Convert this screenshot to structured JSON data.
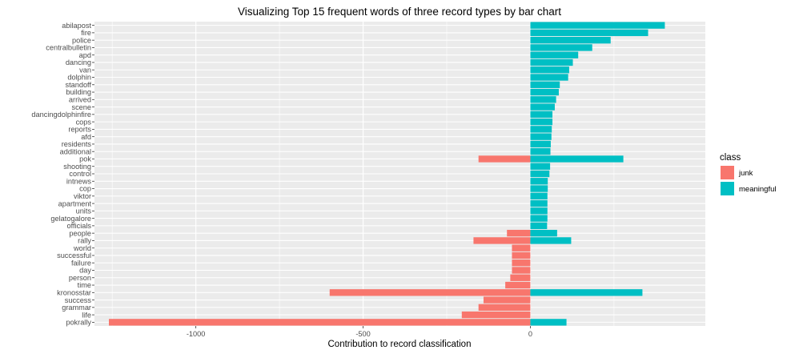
{
  "chart_data": {
    "type": "bar",
    "orientation": "horizontal",
    "title": "Visualizing Top 15 frequent words of three record types by bar chart",
    "xlabel": "Contribution to record classification",
    "ylabel": "",
    "xlim": [
      -1260,
      480
    ],
    "xticks": [
      -1000,
      -500,
      0
    ],
    "xtick_labels": [
      "-1000",
      "-500",
      "0"
    ],
    "grid": true,
    "legend": {
      "title": "class",
      "position": "right"
    },
    "categories": [
      "abilapost",
      "fire",
      "police",
      "centralbulletin",
      "apd",
      "dancing",
      "van",
      "dolphin",
      "standoff",
      "building",
      "arrived",
      "scene",
      "dancingdolphinfire",
      "cops",
      "reports",
      "afd",
      "residents",
      "additional",
      "pok",
      "shooting",
      "control",
      "intnews",
      "cop",
      "viktor",
      "apartment",
      "units",
      "gelatogalore",
      "officials",
      "people",
      "rally",
      "world",
      "successful",
      "failure",
      "day",
      "person",
      "time",
      "kronosstar",
      "success",
      "grammar",
      "life",
      "pokrally"
    ],
    "series": [
      {
        "name": "junk",
        "color": "#F8766D",
        "values": [
          0,
          0,
          0,
          0,
          0,
          0,
          0,
          0,
          0,
          0,
          0,
          0,
          0,
          0,
          0,
          0,
          0,
          0,
          -155,
          0,
          0,
          0,
          0,
          0,
          0,
          0,
          0,
          0,
          -70,
          -170,
          -55,
          -55,
          -55,
          -55,
          -60,
          -75,
          -600,
          -140,
          -155,
          -205,
          -1260
        ]
      },
      {
        "name": "meaningful",
        "color": "#00BFC4",
        "values": [
          402,
          352,
          240,
          185,
          143,
          127,
          116,
          113,
          88,
          85,
          77,
          73,
          66,
          66,
          64,
          63,
          61,
          60,
          278,
          59,
          57,
          52,
          52,
          51,
          51,
          51,
          51,
          50,
          80,
          122,
          0,
          0,
          0,
          0,
          0,
          0,
          335,
          0,
          0,
          0,
          108
        ]
      }
    ]
  }
}
